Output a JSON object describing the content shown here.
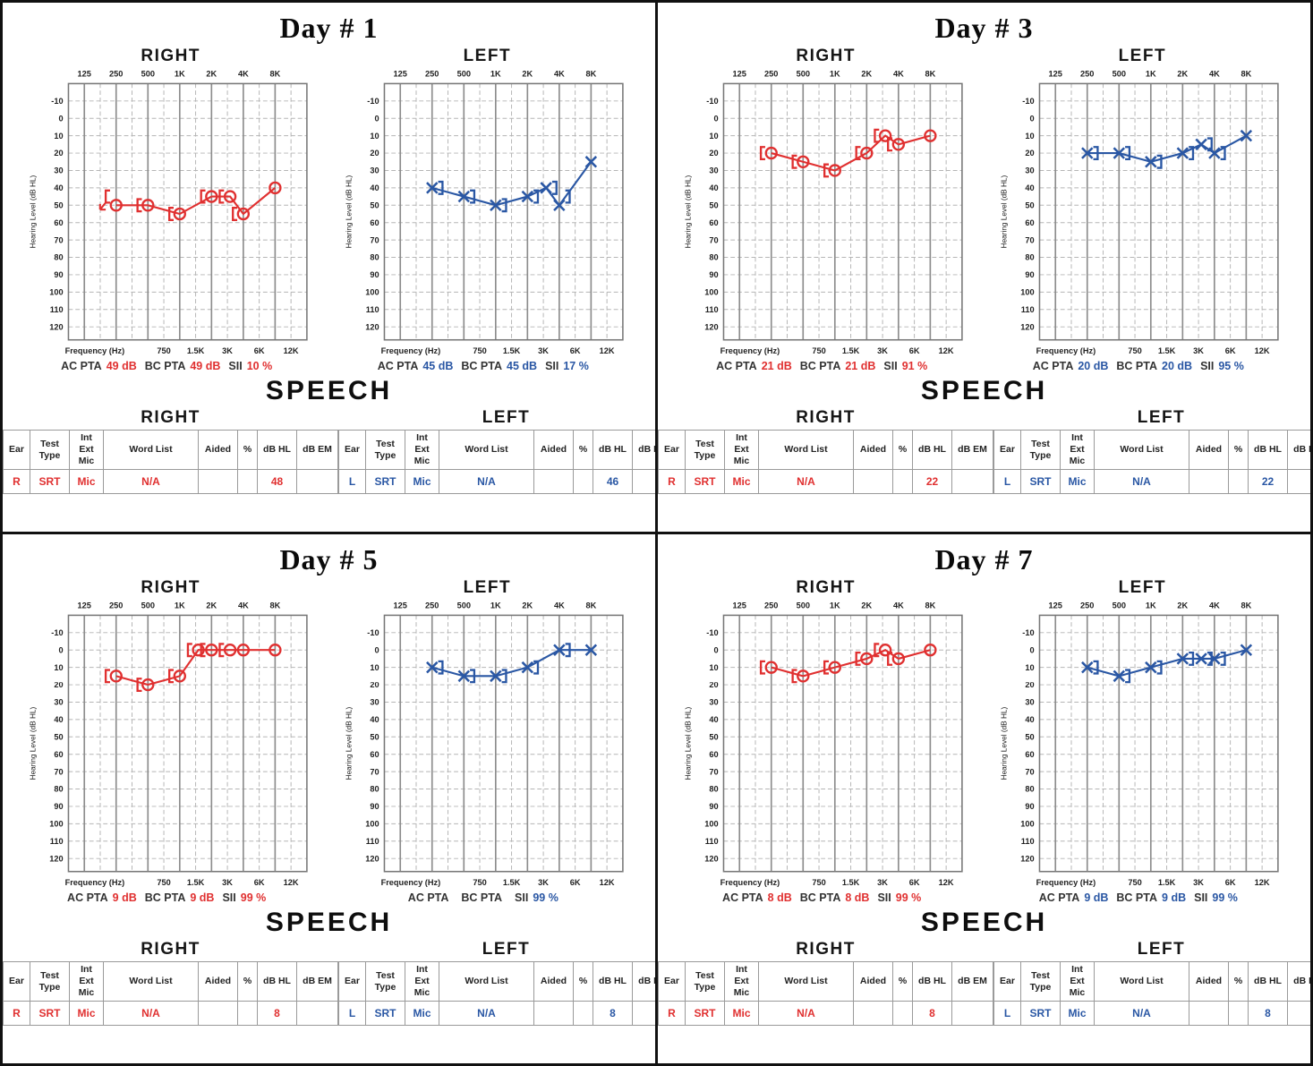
{
  "colors": {
    "right_ear": "#e03030",
    "left_ear": "#2a57a4",
    "grid_major": "#8c8c8c",
    "grid_minor": "#b5b5b5",
    "plot_border": "#777777",
    "tick_text": "#2b2b2b"
  },
  "axis": {
    "top_labels": [
      "125",
      "250",
      "500",
      "1K",
      "2K",
      "4K",
      "8K"
    ],
    "bottom_label": "Frequency (Hz)",
    "bottom_labels": [
      "750",
      "1.5K",
      "3K",
      "6K",
      "12K"
    ],
    "y_label": "Hearing Level (dB HL)",
    "y_min": -10,
    "y_max": 120,
    "y_step": 10
  },
  "pta_labels": {
    "ac": "AC PTA",
    "bc": "BC PTA",
    "sii": "SII"
  },
  "speech": {
    "heading": "SPEECH",
    "headers": {
      "ear": "Ear",
      "test_type": [
        "Test",
        "Type"
      ],
      "int_ext_mic": [
        "Int",
        "Ext",
        "Mic"
      ],
      "word_list": "Word List",
      "aided": "Aided",
      "pct": "%",
      "db_hl": "dB HL",
      "db_em": "dB EM"
    }
  },
  "chart_data": [
    {
      "type": "line",
      "day": "Day # 1",
      "ear": "RIGHT",
      "color_role": "right",
      "xlabel": "Frequency (Hz)",
      "ylabel": "Hearing Level (dB HL)",
      "ylim": [
        -10,
        120
      ],
      "x": [
        250,
        500,
        1000,
        2000,
        3000,
        4000,
        8000
      ],
      "series": [
        {
          "name": "AC",
          "values": [
            50,
            50,
            55,
            45,
            45,
            55,
            40
          ]
        },
        {
          "name": "BC masked",
          "values": [
            45,
            50,
            55,
            45,
            45,
            55,
            null
          ]
        }
      ],
      "bc_arrow_at": 250
    },
    {
      "type": "line",
      "day": "Day # 1",
      "ear": "LEFT",
      "color_role": "left",
      "xlabel": "Frequency (Hz)",
      "ylabel": "Hearing Level (dB HL)",
      "ylim": [
        -10,
        120
      ],
      "x": [
        250,
        500,
        1000,
        2000,
        3000,
        4000,
        8000
      ],
      "series": [
        {
          "name": "AC",
          "values": [
            40,
            45,
            50,
            45,
            40,
            50,
            25
          ]
        },
        {
          "name": "BC masked",
          "values": [
            40,
            45,
            50,
            45,
            40,
            45,
            null
          ]
        }
      ]
    },
    {
      "type": "line",
      "day": "Day # 3",
      "ear": "RIGHT",
      "color_role": "right",
      "xlabel": "Frequency (Hz)",
      "ylabel": "Hearing Level (dB HL)",
      "ylim": [
        -10,
        120
      ],
      "x": [
        250,
        500,
        1000,
        2000,
        3000,
        4000,
        8000
      ],
      "series": [
        {
          "name": "AC",
          "values": [
            20,
            25,
            30,
            20,
            10,
            15,
            10
          ]
        },
        {
          "name": "BC masked",
          "values": [
            20,
            25,
            30,
            20,
            10,
            15,
            null
          ]
        }
      ]
    },
    {
      "type": "line",
      "day": "Day # 3",
      "ear": "LEFT",
      "color_role": "left",
      "xlabel": "Frequency (Hz)",
      "ylabel": "Hearing Level (dB HL)",
      "ylim": [
        -10,
        120
      ],
      "x": [
        250,
        500,
        1000,
        2000,
        3000,
        4000,
        8000
      ],
      "series": [
        {
          "name": "AC",
          "values": [
            20,
            20,
            25,
            20,
            15,
            20,
            10
          ]
        },
        {
          "name": "BC masked",
          "values": [
            20,
            20,
            25,
            20,
            15,
            20,
            null
          ]
        }
      ]
    },
    {
      "type": "line",
      "day": "Day # 5",
      "ear": "RIGHT",
      "color_role": "right",
      "xlabel": "Frequency (Hz)",
      "ylabel": "Hearing Level (dB HL)",
      "ylim": [
        -10,
        120
      ],
      "x": [
        250,
        500,
        1000,
        1500,
        2000,
        3000,
        4000,
        8000
      ],
      "series": [
        {
          "name": "AC",
          "values": [
            15,
            20,
            15,
            0,
            0,
            0,
            0,
            0
          ]
        },
        {
          "name": "BC masked",
          "values": [
            15,
            20,
            15,
            0,
            0,
            0,
            null,
            null
          ]
        }
      ]
    },
    {
      "type": "line",
      "day": "Day # 5",
      "ear": "LEFT",
      "color_role": "left",
      "xlabel": "Frequency (Hz)",
      "ylabel": "Hearing Level (dB HL)",
      "ylim": [
        -10,
        120
      ],
      "x": [
        250,
        500,
        1000,
        2000,
        4000,
        8000
      ],
      "series": [
        {
          "name": "AC",
          "values": [
            10,
            15,
            15,
            10,
            0,
            0
          ]
        },
        {
          "name": "BC masked",
          "values": [
            10,
            15,
            15,
            10,
            0,
            null
          ]
        }
      ]
    },
    {
      "type": "line",
      "day": "Day # 7",
      "ear": "RIGHT",
      "color_role": "right",
      "xlabel": "Frequency (Hz)",
      "ylabel": "Hearing Level (dB HL)",
      "ylim": [
        -10,
        120
      ],
      "x": [
        250,
        500,
        1000,
        2000,
        3000,
        4000,
        8000
      ],
      "series": [
        {
          "name": "AC",
          "values": [
            10,
            15,
            10,
            5,
            0,
            5,
            0
          ]
        },
        {
          "name": "BC masked",
          "values": [
            10,
            15,
            10,
            5,
            0,
            5,
            null
          ]
        }
      ]
    },
    {
      "type": "line",
      "day": "Day # 7",
      "ear": "LEFT",
      "color_role": "left",
      "xlabel": "Frequency (Hz)",
      "ylabel": "Hearing Level (dB HL)",
      "ylim": [
        -10,
        120
      ],
      "x": [
        250,
        500,
        1000,
        2000,
        3000,
        4000,
        8000
      ],
      "series": [
        {
          "name": "AC",
          "values": [
            10,
            15,
            10,
            5,
            5,
            5,
            0
          ]
        },
        {
          "name": "BC masked",
          "values": [
            10,
            15,
            10,
            5,
            5,
            5,
            null
          ]
        }
      ]
    }
  ],
  "panels": [
    {
      "title": "Day # 1",
      "right": {
        "header": "RIGHT",
        "chart_index": 0,
        "pta": {
          "ac": "49 dB",
          "bc": "49 dB",
          "sii": "10 %"
        },
        "speech_row": {
          "ear": "R",
          "test": "SRT",
          "mic": "Mic",
          "word": "N/A",
          "aided": "",
          "pct": "",
          "db_hl": "48",
          "db_em": ""
        }
      },
      "left": {
        "header": "LEFT",
        "chart_index": 1,
        "pta": {
          "ac": "45 dB",
          "bc": "45 dB",
          "sii": "17 %"
        },
        "speech_row": {
          "ear": "L",
          "test": "SRT",
          "mic": "Mic",
          "word": "N/A",
          "aided": "",
          "pct": "",
          "db_hl": "46",
          "db_em": ""
        }
      }
    },
    {
      "title": "Day # 3",
      "right": {
        "header": "RIGHT",
        "chart_index": 2,
        "pta": {
          "ac": "21 dB",
          "bc": "21 dB",
          "sii": "91 %"
        },
        "speech_row": {
          "ear": "R",
          "test": "SRT",
          "mic": "Mic",
          "word": "N/A",
          "aided": "",
          "pct": "",
          "db_hl": "22",
          "db_em": ""
        }
      },
      "left": {
        "header": "LEFT",
        "chart_index": 3,
        "pta": {
          "ac": "20 dB",
          "bc": "20 dB",
          "sii": "95 %"
        },
        "speech_row": {
          "ear": "L",
          "test": "SRT",
          "mic": "Mic",
          "word": "N/A",
          "aided": "",
          "pct": "",
          "db_hl": "22",
          "db_em": ""
        }
      }
    },
    {
      "title": "Day # 5",
      "right": {
        "header": "RIGHT",
        "chart_index": 4,
        "pta": {
          "ac": "9 dB",
          "bc": "9 dB",
          "sii": "99 %"
        },
        "speech_row": {
          "ear": "R",
          "test": "SRT",
          "mic": "Mic",
          "word": "N/A",
          "aided": "",
          "pct": "",
          "db_hl": "8",
          "db_em": ""
        }
      },
      "left": {
        "header": "LEFT",
        "chart_index": 5,
        "pta": {
          "ac": "",
          "bc": "",
          "sii": "99 %"
        },
        "speech_row": {
          "ear": "L",
          "test": "SRT",
          "mic": "Mic",
          "word": "N/A",
          "aided": "",
          "pct": "",
          "db_hl": "8",
          "db_em": ""
        }
      }
    },
    {
      "title": "Day # 7",
      "right": {
        "header": "RIGHT",
        "chart_index": 6,
        "pta": {
          "ac": "8 dB",
          "bc": "8 dB",
          "sii": "99 %"
        },
        "speech_row": {
          "ear": "R",
          "test": "SRT",
          "mic": "Mic",
          "word": "N/A",
          "aided": "",
          "pct": "",
          "db_hl": "8",
          "db_em": ""
        }
      },
      "left": {
        "header": "LEFT",
        "chart_index": 7,
        "pta": {
          "ac": "9 dB",
          "bc": "9 dB",
          "sii": "99 %"
        },
        "speech_row": {
          "ear": "L",
          "test": "SRT",
          "mic": "Mic",
          "word": "N/A",
          "aided": "",
          "pct": "",
          "db_hl": "8",
          "db_em": ""
        }
      }
    }
  ]
}
